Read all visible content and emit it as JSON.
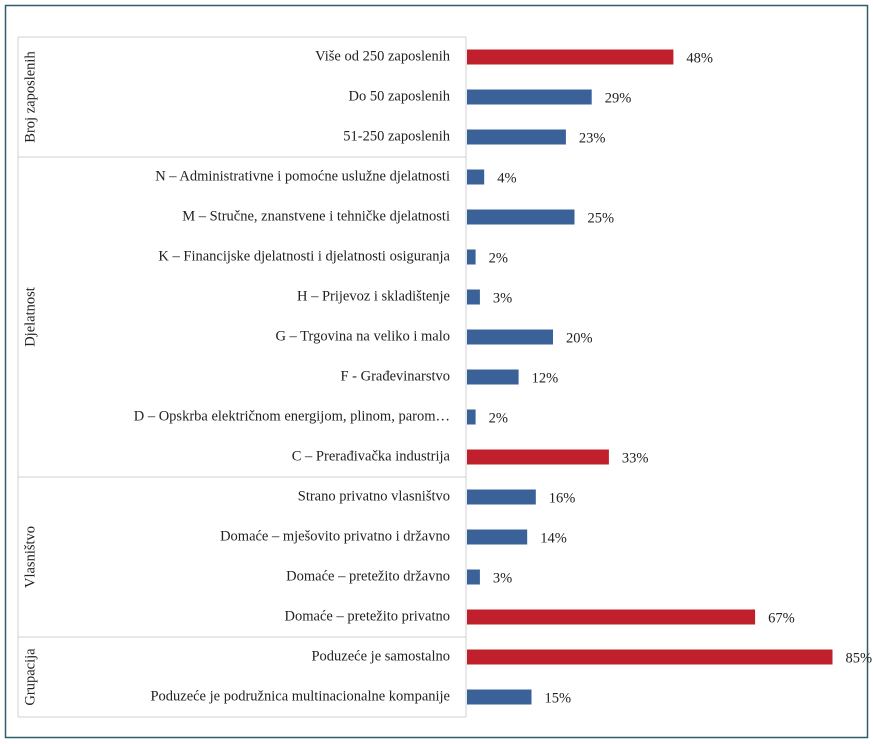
{
  "chart_data": {
    "type": "bar",
    "orientation": "horizontal",
    "groups": [
      {
        "name": "Broj zaposlenih",
        "categories": [
          "Više od 250 zaposlenih",
          "Do 50 zaposlenih",
          "51-250 zaposlenih"
        ],
        "values": [
          48,
          29,
          23
        ],
        "value_labels": [
          "48%",
          "29%",
          "23%"
        ],
        "colors": [
          "#c0202b",
          "#3a6298",
          "#3a6298"
        ]
      },
      {
        "name": "Djelatnost",
        "categories": [
          "N – Administrativne i pomoćne uslužne djelatnosti",
          "M – Stručne, znanstvene i tehničke djelatnosti",
          "K – Financijske djelatnosti i djelatnosti osiguranja",
          "H – Prijevoz i skladištenje",
          "G – Trgovina na veliko i malo",
          "F - Građevinarstvo",
          "D – Opskrba električnom energijom, plinom, parom…",
          "C – Prerađivačka industrija"
        ],
        "values": [
          4,
          25,
          2,
          3,
          20,
          12,
          2,
          33
        ],
        "value_labels": [
          "4%",
          "25%",
          "2%",
          "3%",
          "20%",
          "12%",
          "2%",
          "33%"
        ],
        "colors": [
          "#3a6298",
          "#3a6298",
          "#3a6298",
          "#3a6298",
          "#3a6298",
          "#3a6298",
          "#3a6298",
          "#c0202b"
        ]
      },
      {
        "name": "Vlasništvo",
        "categories": [
          "Strano privatno vlasništvo",
          "Domaće – mješovito privatno i državno",
          "Domaće – pretežito državno",
          "Domaće – pretežito privatno"
        ],
        "values": [
          16,
          14,
          3,
          67
        ],
        "value_labels": [
          "16%",
          "14%",
          "3%",
          "67%"
        ],
        "colors": [
          "#3a6298",
          "#3a6298",
          "#3a6298",
          "#c0202b"
        ]
      },
      {
        "name": "Grupacija",
        "categories": [
          "Poduzeće je samostalno",
          "Poduzeće je podružnica multinacionalne kompanije"
        ],
        "values": [
          85,
          15
        ],
        "value_labels": [
          "85%",
          "15%"
        ],
        "colors": [
          "#c0202b",
          "#3a6298"
        ]
      }
    ]
  }
}
